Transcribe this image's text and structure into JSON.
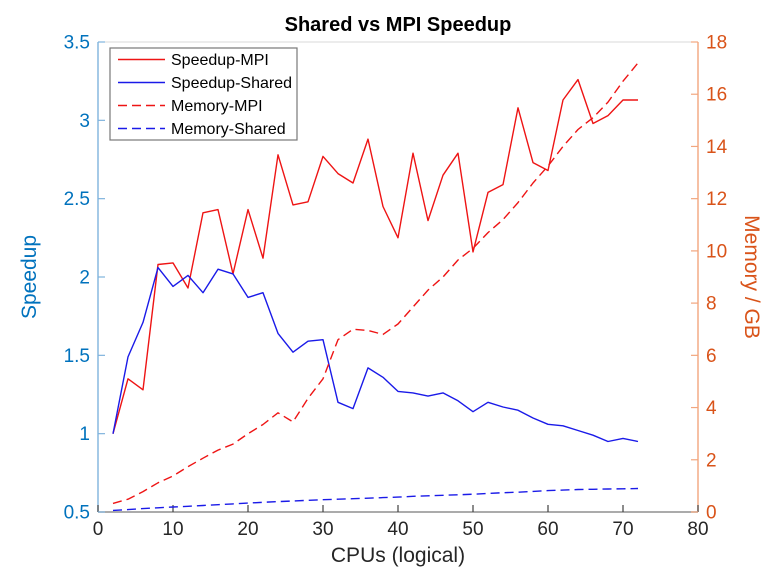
{
  "chart_data": {
    "type": "line",
    "title": "Shared vs MPI Speedup",
    "xlabel": "CPUs (logical)",
    "ylabel_left": "Speedup",
    "ylabel_right": "Memory / GB",
    "x_range": [
      0,
      80
    ],
    "y_left_range": [
      0.5,
      3.5
    ],
    "y_right_range": [
      0,
      18
    ],
    "x_ticks": [
      0,
      10,
      20,
      30,
      40,
      50,
      60,
      70,
      80
    ],
    "y_left_ticks": [
      0.5,
      1,
      1.5,
      2,
      2.5,
      3,
      3.5
    ],
    "y_right_ticks": [
      0,
      2,
      4,
      6,
      8,
      10,
      12,
      14,
      16,
      18
    ],
    "grid": false,
    "legend_position": "top-left",
    "colors": {
      "red": "#ee1414",
      "blue": "#1a1ae8",
      "left_axis_text": "#0072bd",
      "right_axis_text": "#d95319",
      "x_axis_text": "#262626",
      "left_spine": "#7fb3dd",
      "right_spine": "#f2a67e",
      "bottom_spine": "#8f8f8f",
      "top_spine": "#d9d9d9",
      "tick_dark": "#404040",
      "legend_border": "#777777"
    },
    "x": [
      2,
      4,
      6,
      8,
      10,
      12,
      14,
      16,
      18,
      20,
      22,
      24,
      26,
      28,
      30,
      32,
      34,
      36,
      38,
      40,
      42,
      44,
      46,
      48,
      50,
      52,
      54,
      56,
      58,
      60,
      62,
      64,
      66,
      68,
      70,
      72
    ],
    "series": [
      {
        "name": "Speedup-MPI",
        "axis": "left",
        "style": "solid",
        "color_key": "red",
        "values": [
          1.0,
          1.35,
          1.28,
          2.08,
          2.09,
          1.93,
          2.41,
          2.43,
          2.02,
          2.43,
          2.12,
          2.78,
          2.46,
          2.48,
          2.77,
          2.66,
          2.6,
          2.88,
          2.45,
          2.25,
          2.79,
          2.36,
          2.65,
          2.79,
          2.16,
          2.54,
          2.59,
          3.08,
          2.73,
          2.68,
          3.13,
          3.26,
          2.98,
          3.03,
          3.13,
          3.13
        ]
      },
      {
        "name": "Speedup-Shared",
        "axis": "left",
        "style": "solid",
        "color_key": "blue",
        "values": [
          1.0,
          1.49,
          1.71,
          2.06,
          1.94,
          2.01,
          1.9,
          2.05,
          2.02,
          1.87,
          1.9,
          1.64,
          1.52,
          1.59,
          1.6,
          1.2,
          1.16,
          1.42,
          1.36,
          1.27,
          1.26,
          1.24,
          1.26,
          1.21,
          1.14,
          1.2,
          1.17,
          1.15,
          1.1,
          1.06,
          1.05,
          1.02,
          0.99,
          0.95,
          0.97,
          0.95
        ]
      },
      {
        "name": "Memory-MPI",
        "axis": "right",
        "style": "dashed",
        "color_key": "red",
        "values": [
          0.33,
          0.49,
          0.78,
          1.12,
          1.38,
          1.74,
          2.06,
          2.37,
          2.6,
          3.0,
          3.35,
          3.8,
          3.45,
          4.35,
          5.1,
          6.6,
          7.0,
          6.95,
          6.8,
          7.2,
          7.85,
          8.5,
          9.0,
          9.65,
          10.1,
          10.7,
          11.2,
          11.85,
          12.6,
          13.25,
          14.0,
          14.65,
          15.1,
          15.7,
          16.5,
          17.2
        ]
      },
      {
        "name": "Memory-Shared",
        "axis": "right",
        "style": "dashed",
        "color_key": "blue",
        "values": [
          0.06,
          0.09,
          0.13,
          0.16,
          0.19,
          0.22,
          0.25,
          0.28,
          0.31,
          0.34,
          0.37,
          0.4,
          0.42,
          0.45,
          0.47,
          0.49,
          0.51,
          0.53,
          0.55,
          0.57,
          0.6,
          0.62,
          0.64,
          0.66,
          0.68,
          0.71,
          0.74,
          0.76,
          0.79,
          0.82,
          0.84,
          0.86,
          0.87,
          0.88,
          0.89,
          0.9
        ]
      }
    ],
    "legend_entries": [
      "Speedup-MPI",
      "Speedup-Shared",
      "Memory-MPI",
      "Memory-Shared"
    ]
  }
}
